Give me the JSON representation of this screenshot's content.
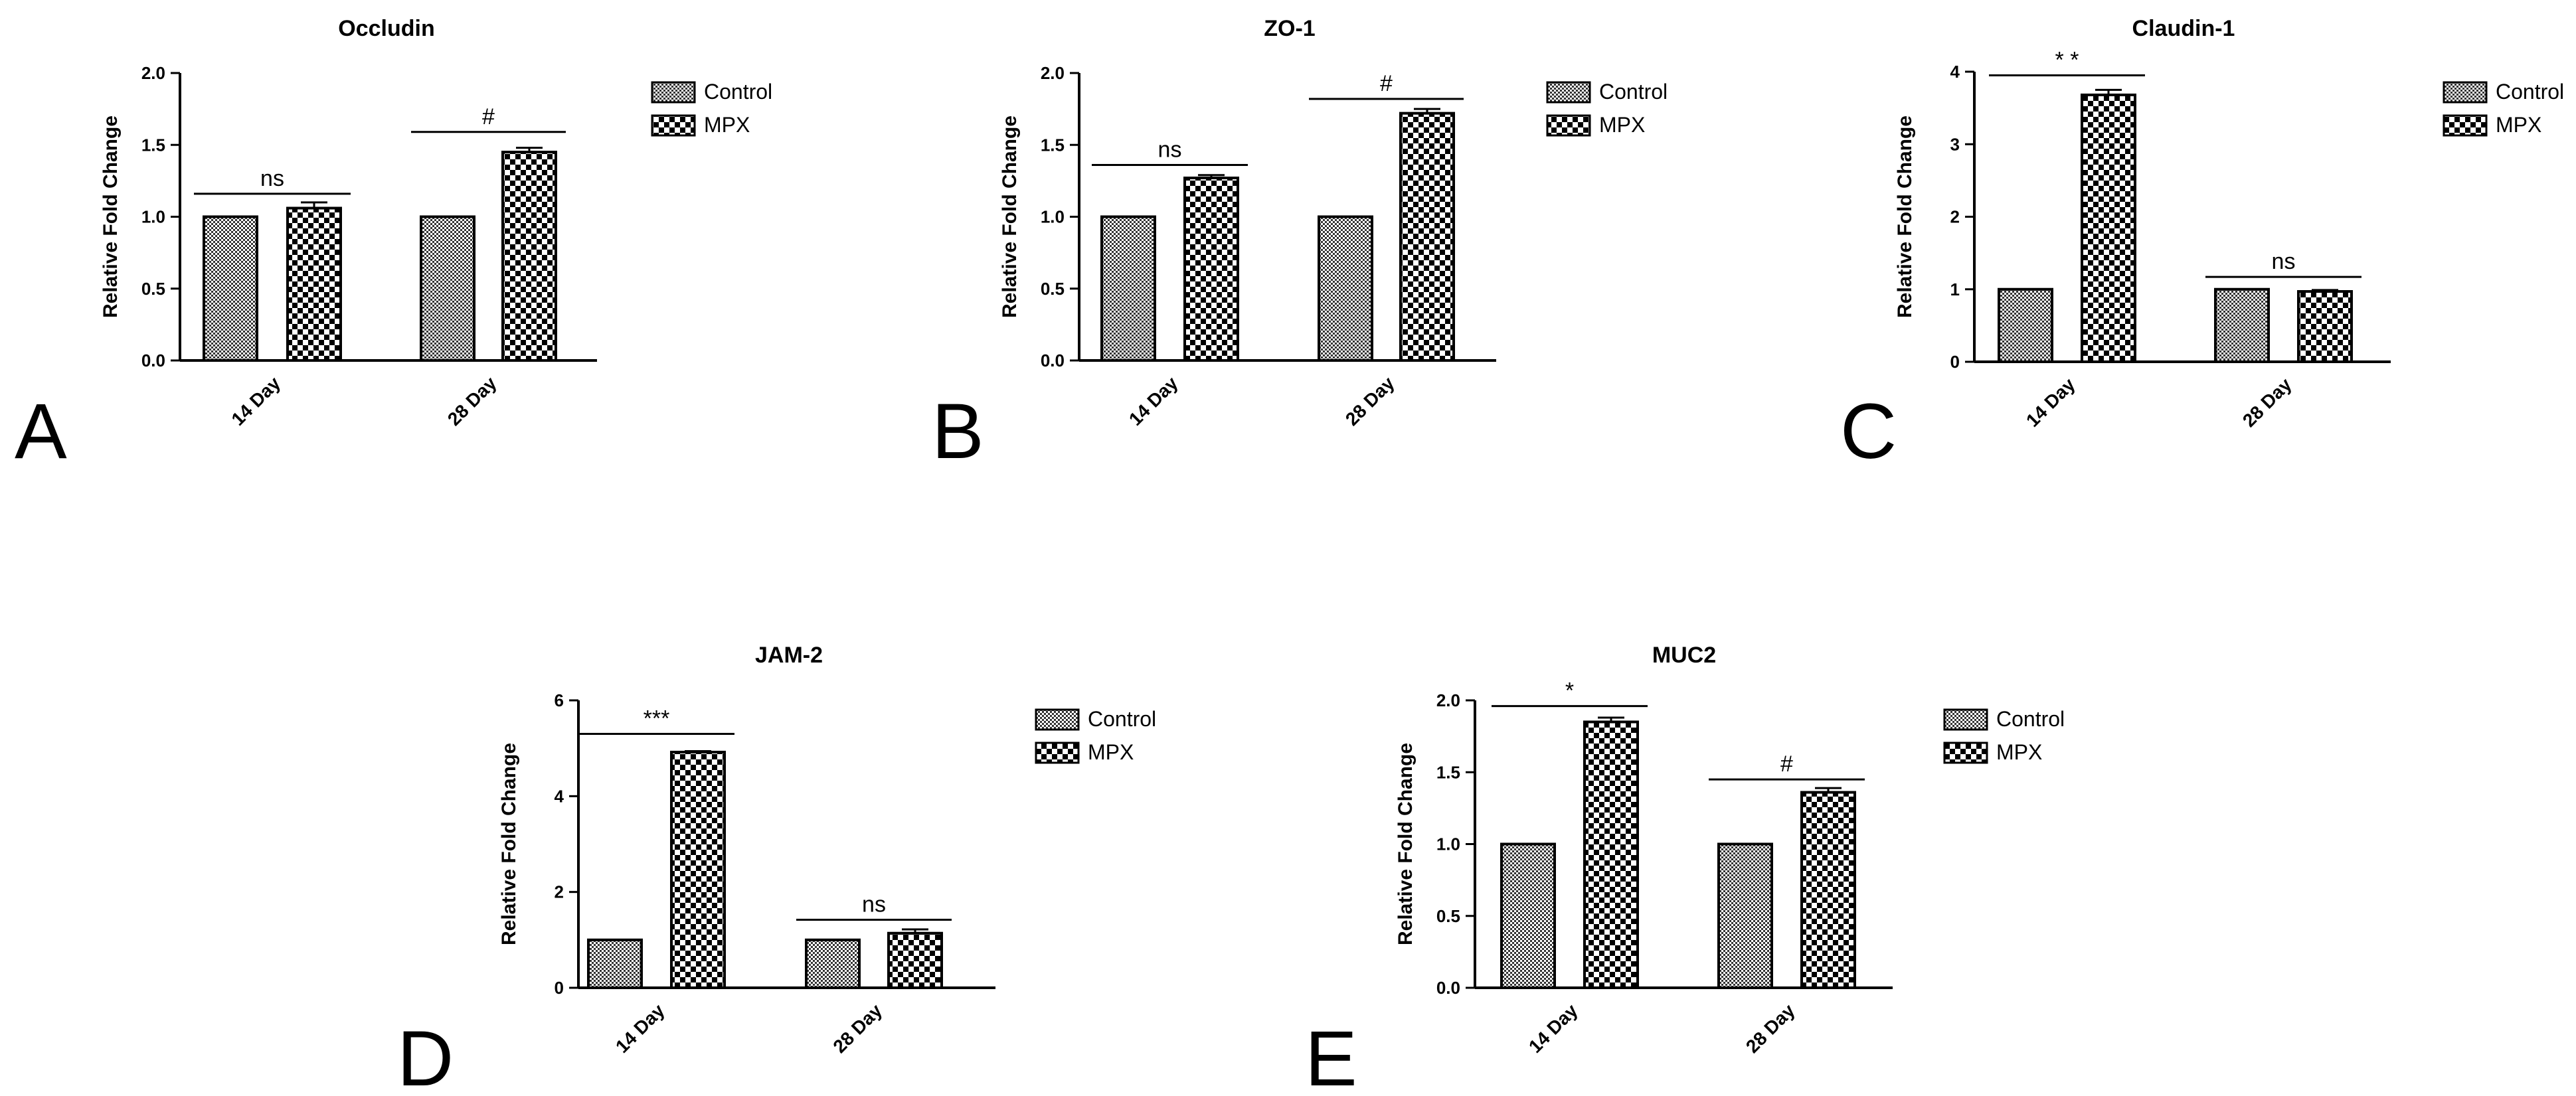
{
  "figure": {
    "panels": [
      {
        "letter": "A",
        "chart_title": "Occludin"
      },
      {
        "letter": "B",
        "chart_title": "ZO-1"
      },
      {
        "letter": "C",
        "chart_title": "Claudin-1"
      },
      {
        "letter": "D",
        "chart_title": "JAM-2"
      },
      {
        "letter": "E",
        "chart_title": "MUC2"
      }
    ]
  },
  "chart_data": [
    {
      "type": "bar",
      "title": "Occludin",
      "xlabel": "",
      "ylabel": "Relative Fold Change",
      "categories": [
        "14 Day",
        "28 Day"
      ],
      "series": [
        {
          "name": "Control",
          "values": [
            1.0,
            1.0
          ],
          "errors": [
            0.0,
            0.0
          ]
        },
        {
          "name": "MPX",
          "values": [
            1.06,
            1.45
          ],
          "errors": [
            0.04,
            0.03
          ]
        }
      ],
      "ylim": [
        0,
        2.0
      ],
      "yticks": [
        "0.0",
        "0.5",
        "1.0",
        "1.5",
        "2.0"
      ],
      "yticks_values": [
        0,
        0.5,
        1.0,
        1.5,
        2.0
      ],
      "significance": [
        {
          "label": "ns",
          "category": "14 Day",
          "y": 1.16
        },
        {
          "label": "#",
          "category": "28 Day",
          "y": 1.59
        }
      ],
      "legend": [
        "Control",
        "MPX"
      ]
    },
    {
      "type": "bar",
      "title": "ZO-1",
      "xlabel": "",
      "ylabel": "Relative Fold Change",
      "categories": [
        "14 Day",
        "28 Day"
      ],
      "series": [
        {
          "name": "Control",
          "values": [
            1.0,
            1.0
          ],
          "errors": [
            0.0,
            0.0
          ]
        },
        {
          "name": "MPX",
          "values": [
            1.27,
            1.72
          ],
          "errors": [
            0.02,
            0.03
          ]
        }
      ],
      "ylim": [
        0,
        2.0
      ],
      "yticks": [
        "0.0",
        "0.5",
        "1.0",
        "1.5",
        "2.0"
      ],
      "yticks_values": [
        0,
        0.5,
        1.0,
        1.5,
        2.0
      ],
      "significance": [
        {
          "label": "ns",
          "category": "14 Day",
          "y": 1.36
        },
        {
          "label": "#",
          "category": "28 Day",
          "y": 1.82
        }
      ],
      "legend": [
        "Control",
        "MPX"
      ]
    },
    {
      "type": "bar",
      "title": "Claudin-1",
      "xlabel": "",
      "ylabel": "Relative Fold Change",
      "categories": [
        "14 Day",
        "28 Day"
      ],
      "series": [
        {
          "name": "Control",
          "values": [
            1.0,
            1.0
          ],
          "errors": [
            0.0,
            0.0
          ]
        },
        {
          "name": "MPX",
          "values": [
            3.68,
            0.97
          ],
          "errors": [
            0.07,
            0.02
          ]
        }
      ],
      "ylim": [
        0,
        4
      ],
      "yticks": [
        "0",
        "1",
        "2",
        "3",
        "4"
      ],
      "yticks_values": [
        0,
        1,
        2,
        3,
        4
      ],
      "significance": [
        {
          "label": "* *",
          "category": "14 Day",
          "y": 3.95
        },
        {
          "label": "ns",
          "category": "28 Day",
          "y": 1.17
        }
      ],
      "legend": [
        "Control",
        "MPX"
      ]
    },
    {
      "type": "bar",
      "title": "JAM-2",
      "xlabel": "",
      "ylabel": "Relative Fold Change",
      "categories": [
        "14 Day",
        "28 Day"
      ],
      "series": [
        {
          "name": "Control",
          "values": [
            1.0,
            1.0
          ],
          "errors": [
            0.0,
            0.0
          ]
        },
        {
          "name": "MPX",
          "values": [
            4.92,
            1.14
          ],
          "errors": [
            0.02,
            0.08
          ]
        }
      ],
      "ylim": [
        0,
        6
      ],
      "yticks": [
        "0",
        "2",
        "4",
        "6"
      ],
      "yticks_values": [
        0,
        2,
        4,
        6
      ],
      "significance": [
        {
          "label": "***",
          "category": "14 Day",
          "y": 5.3
        },
        {
          "label": "ns",
          "category": "28 Day",
          "y": 1.42
        }
      ],
      "legend": [
        "Control",
        "MPX"
      ]
    },
    {
      "type": "bar",
      "title": "MUC2",
      "xlabel": "",
      "ylabel": "Relative Fold Change",
      "categories": [
        "14 Day",
        "28 Day"
      ],
      "series": [
        {
          "name": "Control",
          "values": [
            1.0,
            1.0
          ],
          "errors": [
            0.0,
            0.0
          ]
        },
        {
          "name": "MPX",
          "values": [
            1.85,
            1.36
          ],
          "errors": [
            0.03,
            0.03
          ]
        }
      ],
      "ylim": [
        0,
        2.0
      ],
      "yticks": [
        "0.0",
        "0.5",
        "1.0",
        "1.5",
        "2.0"
      ],
      "yticks_values": [
        0,
        0.5,
        1.0,
        1.5,
        2.0
      ],
      "significance": [
        {
          "label": "*",
          "category": "14 Day",
          "y": 1.96
        },
        {
          "label": "#",
          "category": "28 Day",
          "y": 1.45
        }
      ],
      "legend": [
        "Control",
        "MPX"
      ]
    }
  ]
}
